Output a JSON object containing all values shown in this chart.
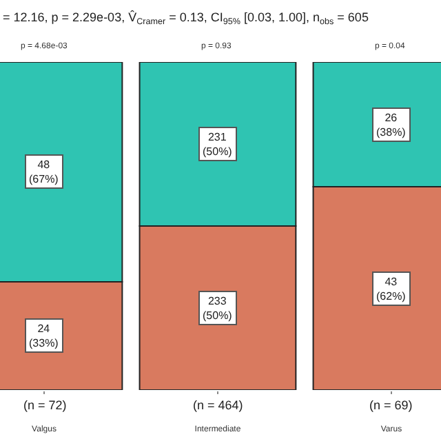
{
  "chart_data": {
    "type": "bar",
    "title": "= 12.16, p = 2.29e-03, V̂$_{Cramer}$ = 0.13, CI$_{95%}$ [0.03, 1.00], n$_{obs}$ = 605",
    "categories": [
      "Valgus",
      "Intermediate",
      "Varus"
    ],
    "stacked": true,
    "ylim": [
      0,
      100
    ],
    "series": [
      {
        "color": "#d97a5f",
        "values": [
          33,
          50,
          62
        ],
        "value_labels": [
          "24\n(33%)",
          "233\n(50%)",
          "43\n(62%)"
        ]
      },
      {
        "color": "#2fc4b2",
        "values": [
          67,
          50,
          38
        ],
        "value_labels": [
          "48\n(67%)",
          "231\n(50%)",
          "26\n(38%)"
        ]
      }
    ],
    "annotations": [
      "p = 4.68e-03",
      "p = 0.93",
      "p = 0.04",
      "(n = 72)",
      "(n = 464)",
      "(n = 69)"
    ]
  }
}
